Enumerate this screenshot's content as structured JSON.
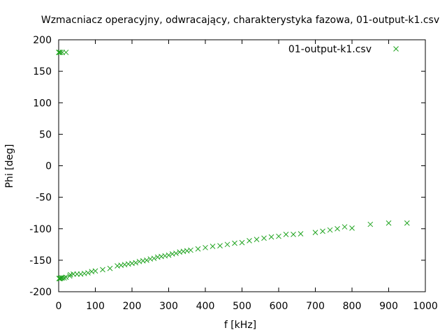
{
  "chart_data": {
    "type": "scatter",
    "title": "Wzmacniacz operacyjny, odwracający, charakterystyka fazowa, 01-output-k1.csv",
    "xlabel": "f [kHz]",
    "ylabel": "Phi [deg]",
    "xlim": [
      0,
      1000
    ],
    "ylim": [
      -200,
      200
    ],
    "xticks": [
      0,
      100,
      200,
      300,
      400,
      500,
      600,
      700,
      800,
      900,
      1000
    ],
    "yticks": [
      -200,
      -150,
      -100,
      -50,
      0,
      50,
      100,
      150,
      200
    ],
    "grid": false,
    "legend_position": "top-right",
    "marker": "x",
    "series_color": "#1fa31f",
    "series": [
      {
        "name": "01-output-k1.csv",
        "points": [
          [
            0.1,
            180
          ],
          [
            1,
            180
          ],
          [
            2,
            180
          ],
          [
            5,
            180
          ],
          [
            10,
            180
          ],
          [
            20,
            180
          ],
          [
            1,
            -179
          ],
          [
            2,
            -179
          ],
          [
            3,
            -179
          ],
          [
            5,
            -179
          ],
          [
            7,
            -178
          ],
          [
            10,
            -178
          ],
          [
            15,
            -178
          ],
          [
            20,
            -177
          ],
          [
            30,
            -175
          ],
          [
            32,
            -173
          ],
          [
            40,
            -172
          ],
          [
            50,
            -172
          ],
          [
            60,
            -172
          ],
          [
            70,
            -171
          ],
          [
            80,
            -170
          ],
          [
            90,
            -168
          ],
          [
            100,
            -167
          ],
          [
            120,
            -165
          ],
          [
            140,
            -163
          ],
          [
            160,
            -159
          ],
          [
            170,
            -158
          ],
          [
            180,
            -157
          ],
          [
            190,
            -156
          ],
          [
            200,
            -155
          ],
          [
            210,
            -154
          ],
          [
            220,
            -152
          ],
          [
            230,
            -151
          ],
          [
            240,
            -150
          ],
          [
            250,
            -148
          ],
          [
            260,
            -147
          ],
          [
            270,
            -145
          ],
          [
            280,
            -144
          ],
          [
            290,
            -143
          ],
          [
            300,
            -142
          ],
          [
            310,
            -140
          ],
          [
            320,
            -139
          ],
          [
            330,
            -137
          ],
          [
            340,
            -136
          ],
          [
            350,
            -135
          ],
          [
            360,
            -134
          ],
          [
            380,
            -132
          ],
          [
            400,
            -130
          ],
          [
            420,
            -128
          ],
          [
            440,
            -127
          ],
          [
            460,
            -125
          ],
          [
            480,
            -123
          ],
          [
            500,
            -122
          ],
          [
            520,
            -119
          ],
          [
            540,
            -117
          ],
          [
            560,
            -115
          ],
          [
            580,
            -113
          ],
          [
            600,
            -112
          ],
          [
            620,
            -109
          ],
          [
            640,
            -109
          ],
          [
            660,
            -108
          ],
          [
            700,
            -106
          ],
          [
            720,
            -104
          ],
          [
            740,
            -102
          ],
          [
            760,
            -100
          ],
          [
            780,
            -97
          ],
          [
            800,
            -99
          ],
          [
            850,
            -93
          ],
          [
            900,
            -91
          ],
          [
            950,
            -91
          ]
        ]
      }
    ]
  }
}
